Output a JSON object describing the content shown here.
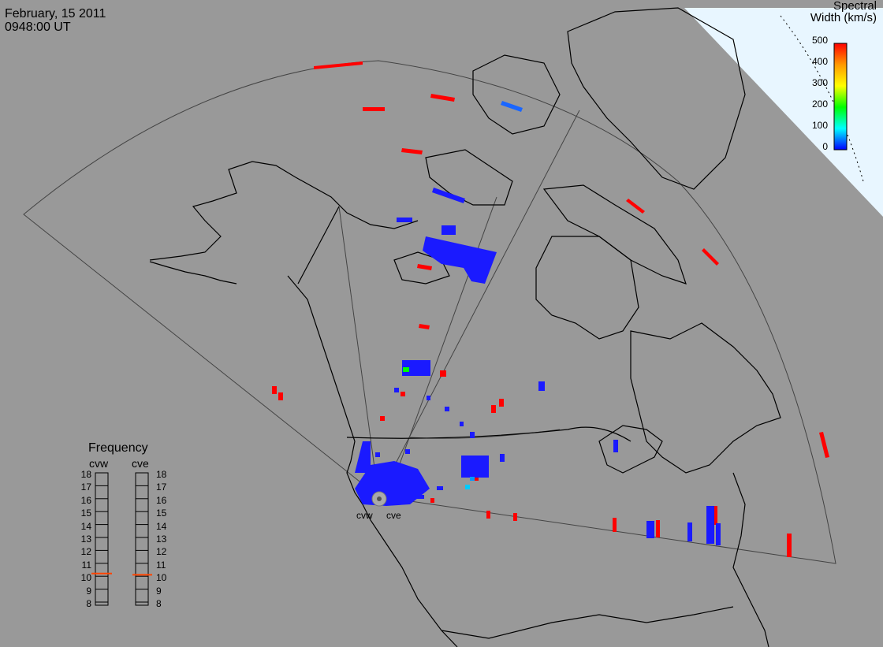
{
  "header": {
    "date": "February, 15 2011",
    "time": "0948:00 UT"
  },
  "colorbar": {
    "title_line1": "Spectral",
    "title_line2": "Width (km/s)",
    "ticks": [
      "500",
      "400",
      "300",
      "200",
      "100",
      "0"
    ],
    "colors": [
      "#ff0000",
      "#ff9900",
      "#ffff00",
      "#00ff00",
      "#00ffff",
      "#0000ff"
    ]
  },
  "frequency_panel": {
    "title": "Frequency",
    "columns": [
      "cvw",
      "cve"
    ],
    "ticks": [
      "18",
      "17",
      "16",
      "15",
      "14",
      "13",
      "12",
      "11",
      "10",
      "9",
      "8"
    ],
    "cvw_value": 10.7,
    "cve_value": 10.6,
    "marker_color": "#ff4400"
  },
  "radars": {
    "west_label": "cvw",
    "east_label": "cve"
  },
  "colors": {
    "background": "#999999",
    "ocean_corner": "#e8f6ff",
    "coast": "#000000",
    "fov": "#333333"
  }
}
